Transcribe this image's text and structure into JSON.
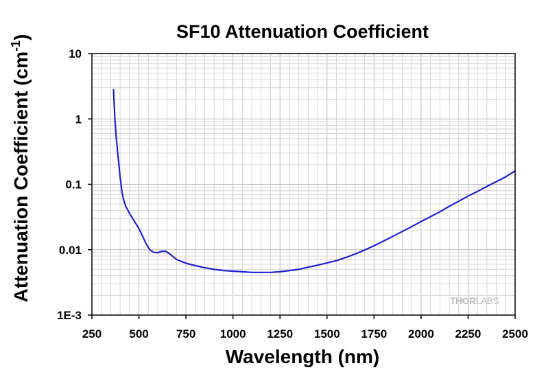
{
  "chart_data": {
    "type": "line",
    "title": "SF10 Attenuation Coefficient",
    "xlabel": "Wavelength (nm)",
    "ylabel": "Attenuation Coefficient (cm",
    "ylabel_superscript": "-1",
    "ylabel_suffix": ")",
    "xlim": [
      250,
      2500
    ],
    "ylim": [
      0.001,
      10
    ],
    "yscale": "log",
    "grid": true,
    "xticks": [
      250,
      500,
      750,
      1000,
      1250,
      1500,
      1750,
      2000,
      2250,
      2500
    ],
    "xtick_labels": [
      "250",
      "500",
      "750",
      "1000",
      "1250",
      "1500",
      "1750",
      "2000",
      "2250",
      "2500"
    ],
    "yticks": [
      0.001,
      0.01,
      0.1,
      1,
      10
    ],
    "ytick_labels": [
      "1E-3",
      "0.01",
      "0.1",
      "1",
      "10"
    ],
    "series": [
      {
        "color": "#1f1fd6",
        "x": [
          365,
          372,
          380,
          390,
          400,
          410,
          420,
          430,
          450,
          470,
          500,
          520,
          540,
          560,
          580,
          600,
          620,
          640,
          660,
          680,
          700,
          750,
          800,
          850,
          900,
          950,
          1000,
          1050,
          1100,
          1150,
          1200,
          1250,
          1300,
          1350,
          1400,
          1450,
          1500,
          1550,
          1600,
          1650,
          1700,
          1750,
          1800,
          1850,
          1900,
          1950,
          2000,
          2050,
          2100,
          2150,
          2200,
          2250,
          2300,
          2350,
          2400,
          2450,
          2500
        ],
        "y": [
          2.8,
          1.0,
          0.5,
          0.25,
          0.13,
          0.075,
          0.056,
          0.046,
          0.036,
          0.029,
          0.021,
          0.016,
          0.012,
          0.0098,
          0.0091,
          0.009,
          0.0094,
          0.0095,
          0.0088,
          0.0079,
          0.0071,
          0.0062,
          0.0057,
          0.0053,
          0.005,
          0.0048,
          0.0047,
          0.0046,
          0.0045,
          0.0045,
          0.0045,
          0.0046,
          0.0048,
          0.005,
          0.0054,
          0.0058,
          0.0063,
          0.0068,
          0.0076,
          0.0086,
          0.0099,
          0.0115,
          0.0135,
          0.016,
          0.019,
          0.0225,
          0.027,
          0.032,
          0.038,
          0.046,
          0.055,
          0.066,
          0.078,
          0.093,
          0.11,
          0.13,
          0.16
        ]
      }
    ]
  },
  "watermark": {
    "part1": "THOR",
    "part2": "LABS"
  }
}
